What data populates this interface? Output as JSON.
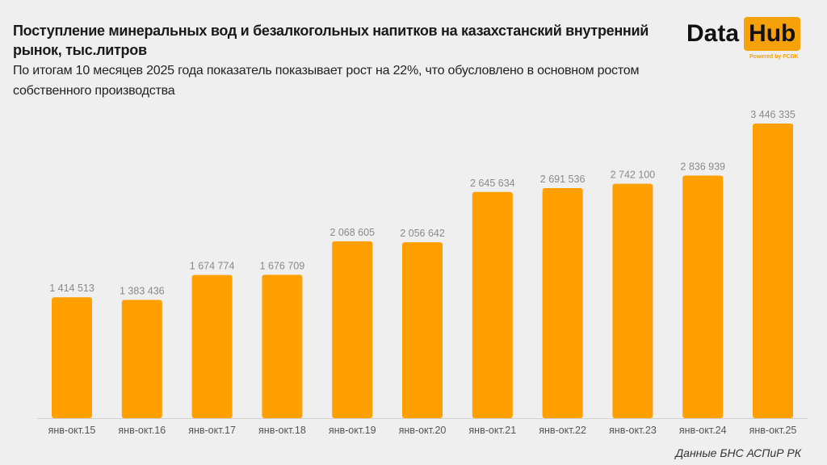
{
  "header": {
    "title": "Поступление минеральных вод и безалкогольных напитков на казахстанский внутренний рынок, тыс.литров",
    "subtitle": "По итогам 10 месяцев 2025 года показатель показывает рост на 22%, что обусловлено в основном ростом собственного производства"
  },
  "logo": {
    "text1": "Data",
    "text2": "Hub",
    "sub": "Powered by FCBK"
  },
  "source": "Данные БНС АСПиР РК",
  "colors": {
    "bar": "#ff9f00",
    "background": "#efefef",
    "label": "#8a8a8a"
  },
  "chart_data": {
    "type": "bar",
    "categories": [
      "янв-окт.15",
      "янв-окт.16",
      "янв-окт.17",
      "янв-окт.18",
      "янв-окт.19",
      "янв-окт.20",
      "янв-окт.21",
      "янв-окт.22",
      "янв-окт.23",
      "янв-окт.24",
      "янв-окт.25"
    ],
    "values": [
      1414513,
      1383436,
      1674774,
      1676709,
      2068605,
      2056642,
      2645634,
      2691536,
      2742100,
      2836939,
      3446335
    ],
    "value_labels": [
      "1 414 513",
      "1 383 436",
      "1 674 774",
      "1 676 709",
      "2 068 605",
      "2 056 642",
      "2 645 634",
      "2 691 536",
      "2 742 100",
      "2 836 939",
      "3 446 335"
    ],
    "ylim": [
      0,
      3446335
    ],
    "grid": false,
    "legend": "none"
  }
}
